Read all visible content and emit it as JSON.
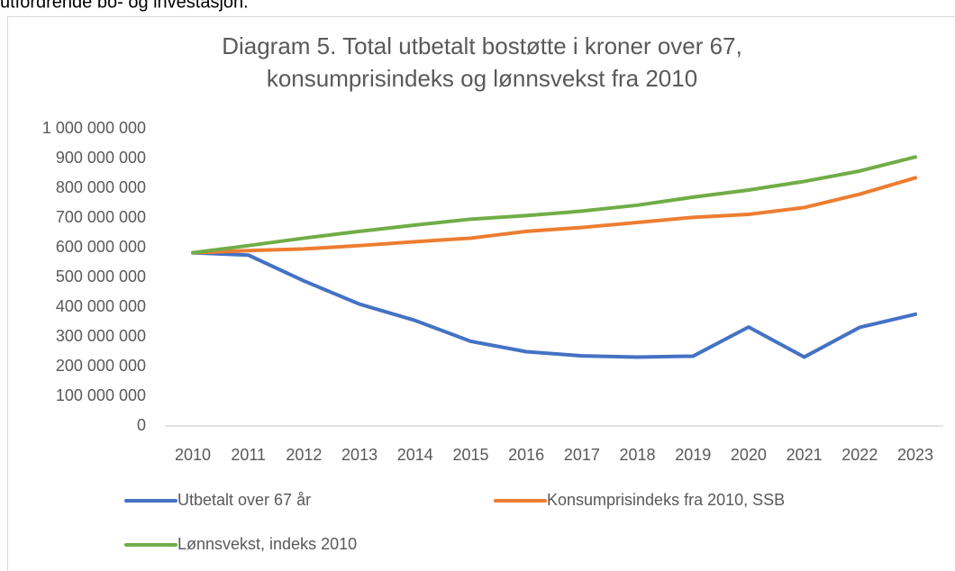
{
  "page_text": "utfordrende bo- og investasjon.",
  "chart_data": {
    "type": "line",
    "title": [
      "Diagram 5. Total utbetalt bostøtte i kroner over 67,",
      "konsumprisindeks og lønnsvekst fra 2010"
    ],
    "categories": [
      "2010",
      "2011",
      "2012",
      "2013",
      "2014",
      "2015",
      "2016",
      "2017",
      "2018",
      "2019",
      "2020",
      "2021",
      "2022",
      "2023"
    ],
    "series": [
      {
        "name": "Utbetalt over 67 år",
        "color": "#4472c4",
        "values": [
          583000000,
          575000000,
          488000000,
          410000000,
          355000000,
          285000000,
          250000000,
          236000000,
          232000000,
          235000000,
          333000000,
          232000000,
          332000000,
          376000000
        ]
      },
      {
        "name": "Konsumprisindeks fra 2010, SSB",
        "color": "#ed7d31",
        "values": [
          583000000,
          590000000,
          596000000,
          607000000,
          620000000,
          632000000,
          655000000,
          668000000,
          685000000,
          702000000,
          712000000,
          735000000,
          780000000,
          835000000
        ]
      },
      {
        "name": "Lønnsvekst, indeks 2010",
        "color": "#70ad47",
        "values": [
          583000000,
          607000000,
          632000000,
          655000000,
          676000000,
          696000000,
          708000000,
          723000000,
          743000000,
          770000000,
          794000000,
          823000000,
          858000000,
          905000000
        ]
      }
    ],
    "ylim": [
      0,
      1000000000
    ],
    "yticks": [
      0,
      {
        "value": 100000000,
        "label": "100 000 000"
      },
      {
        "value": 200000000,
        "label": "200 000 000"
      },
      {
        "value": 300000000,
        "label": "300 000 000"
      },
      {
        "value": 400000000,
        "label": "400 000 000"
      },
      {
        "value": 500000000,
        "label": "500 000 000"
      },
      {
        "value": 600000000,
        "label": "600 000 000"
      },
      {
        "value": 700000000,
        "label": "700 000 000"
      },
      {
        "value": 800000000,
        "label": "800 000 000"
      },
      {
        "value": 900000000,
        "label": "900 000 000"
      },
      {
        "value": 1000000000,
        "label": "1 000 000 000"
      }
    ],
    "grid": false,
    "legend": "bottom"
  }
}
